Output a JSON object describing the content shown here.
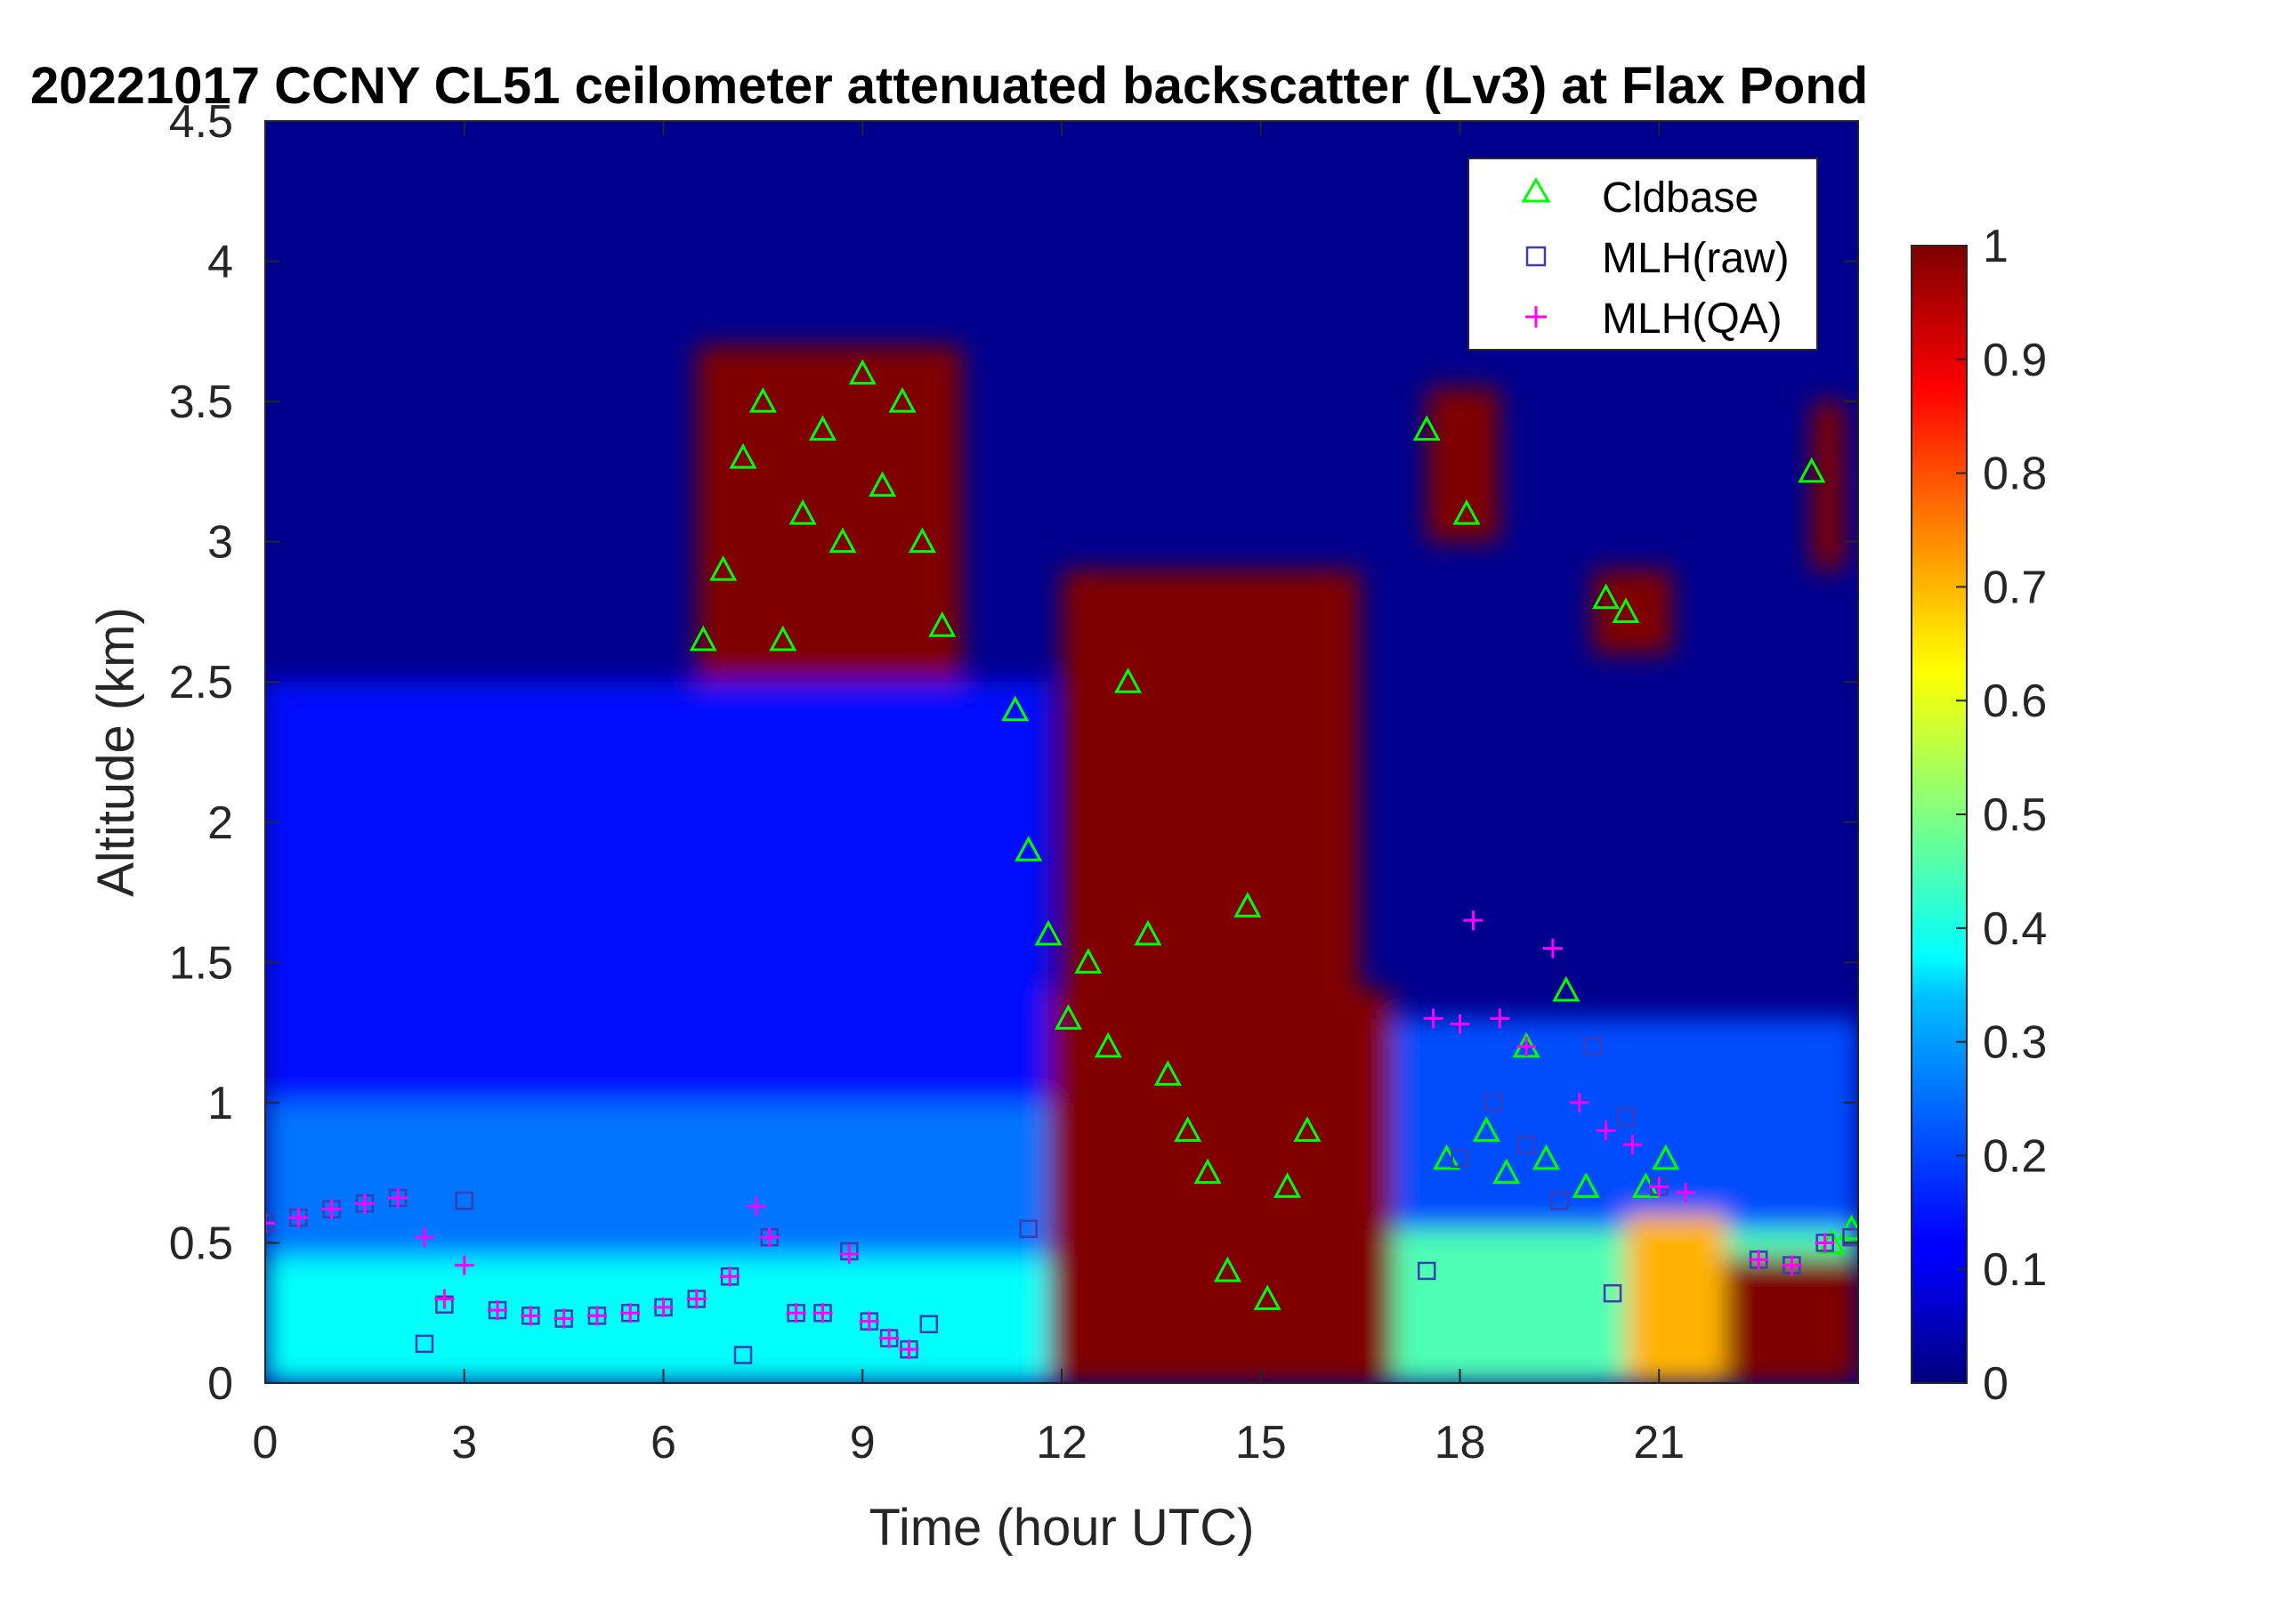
{
  "chart_data": {
    "type": "heatmap",
    "title": "20221017 CCNY CL51 ceilometer attenuated backscatter (Lv3) at Flax Pond",
    "xlabel": "Time (hour UTC)",
    "ylabel": "Altitude (km)",
    "xlim": [
      0,
      24
    ],
    "ylim": [
      0,
      4.5
    ],
    "xticks": [
      "0",
      "3",
      "6",
      "9",
      "12",
      "15",
      "18",
      "21"
    ],
    "yticks": [
      "0",
      "0.5",
      "1",
      "1.5",
      "2",
      "2.5",
      "3",
      "3.5",
      "4",
      "4.5"
    ],
    "colorbar": {
      "range": [
        0,
        1
      ],
      "ticks": [
        "0",
        "0.1",
        "0.2",
        "0.3",
        "0.4",
        "0.5",
        "0.6",
        "0.7",
        "0.8",
        "0.9",
        "1"
      ],
      "colormap": "jet"
    },
    "legend": {
      "placement": "top-right",
      "entries": [
        {
          "label": "Cldbase",
          "marker": "triangle",
          "color": "#00ff00"
        },
        {
          "label": "MLH(raw)",
          "marker": "square",
          "color": "#3c3cb4"
        },
        {
          "label": "MLH(QA)",
          "marker": "plus",
          "color": "#ff00ff"
        }
      ]
    },
    "backscatter_regions": [
      {
        "t0": 0,
        "t1": 11.8,
        "z0": 0,
        "z1": 0.45,
        "value": 0.38
      },
      {
        "t0": 0,
        "t1": 11.8,
        "z0": 0.45,
        "z1": 1.0,
        "value": 0.24
      },
      {
        "t0": 0,
        "t1": 11.8,
        "z0": 1.0,
        "z1": 2.5,
        "value": 0.14
      },
      {
        "t0": 6.5,
        "t1": 10.5,
        "z0": 2.5,
        "z1": 3.7,
        "value": 1.0
      },
      {
        "t0": 11.8,
        "t1": 17.0,
        "z0": 0,
        "z1": 1.4,
        "value": 1.0
      },
      {
        "t0": 12.0,
        "t1": 16.5,
        "z0": 1.4,
        "z1": 2.9,
        "value": 1.0
      },
      {
        "t0": 17.0,
        "t1": 24,
        "z0": 0,
        "z1": 0.55,
        "value": 0.45
      },
      {
        "t0": 17.0,
        "t1": 24,
        "z0": 0.55,
        "z1": 1.3,
        "value": 0.2
      },
      {
        "t0": 20.5,
        "t1": 22.0,
        "z0": 0,
        "z1": 0.6,
        "value": 0.7
      },
      {
        "t0": 22.0,
        "t1": 24,
        "z0": 0,
        "z1": 0.45,
        "value": 1.0
      },
      {
        "t0": 17.5,
        "t1": 18.6,
        "z0": 3.0,
        "z1": 3.55,
        "value": 1.0
      },
      {
        "t0": 20.0,
        "t1": 21.2,
        "z0": 2.6,
        "z1": 2.9,
        "value": 1.0
      },
      {
        "t0": 23.3,
        "t1": 23.8,
        "z0": 2.9,
        "z1": 3.5,
        "value": 1.0
      }
    ],
    "series": [
      {
        "name": "Cldbase",
        "x": [
          6.6,
          6.9,
          7.2,
          7.5,
          7.8,
          8.1,
          8.4,
          8.7,
          9.0,
          9.3,
          9.6,
          9.9,
          10.2,
          11.3,
          11.5,
          11.8,
          12.1,
          12.4,
          12.7,
          13.0,
          13.3,
          13.6,
          13.9,
          14.2,
          14.5,
          14.8,
          15.1,
          15.4,
          15.7,
          17.5,
          17.8,
          18.1,
          18.4,
          18.7,
          19.0,
          19.3,
          19.6,
          19.9,
          20.2,
          20.5,
          20.8,
          21.1,
          23.3,
          23.6,
          23.9
        ],
        "y": [
          2.65,
          2.9,
          3.3,
          3.5,
          2.65,
          3.1,
          3.4,
          3.0,
          3.6,
          3.2,
          3.5,
          3.0,
          2.7,
          2.4,
          1.9,
          1.6,
          1.3,
          1.5,
          1.2,
          2.5,
          1.6,
          1.1,
          0.9,
          0.75,
          0.4,
          1.7,
          0.3,
          0.7,
          0.9,
          3.4,
          0.8,
          3.1,
          0.9,
          0.75,
          1.2,
          0.8,
          1.4,
          0.7,
          2.8,
          2.75,
          0.7,
          0.8,
          3.25,
          0.5,
          0.55
        ]
      },
      {
        "name": "MLH(raw)",
        "x": [
          0.0,
          0.5,
          1.0,
          1.5,
          2.0,
          2.4,
          2.7,
          3.0,
          3.5,
          4.0,
          4.5,
          5.0,
          5.5,
          6.0,
          6.5,
          7.0,
          7.2,
          7.6,
          8.0,
          8.4,
          8.8,
          9.1,
          9.4,
          9.7,
          10.0,
          11.5,
          17.5,
          18.0,
          18.5,
          19.0,
          19.5,
          20.0,
          20.3,
          20.5,
          21.0,
          22.5,
          23.0,
          23.5,
          23.9
        ],
        "y": [
          0.57,
          0.59,
          0.62,
          0.64,
          0.66,
          0.14,
          0.28,
          0.65,
          0.26,
          0.24,
          0.23,
          0.24,
          0.25,
          0.27,
          0.3,
          0.38,
          0.1,
          0.52,
          0.25,
          0.25,
          0.47,
          0.22,
          0.16,
          0.12,
          0.21,
          0.55,
          0.4,
          0.8,
          1.0,
          0.85,
          0.65,
          1.2,
          0.32,
          0.95,
          0.7,
          0.44,
          0.42,
          0.5,
          0.52
        ]
      },
      {
        "name": "MLH(QA)",
        "x": [
          0.0,
          0.5,
          1.0,
          1.5,
          2.0,
          2.4,
          2.7,
          3.0,
          3.5,
          4.0,
          4.5,
          5.0,
          5.5,
          6.0,
          6.5,
          7.0,
          7.4,
          7.6,
          8.0,
          8.4,
          8.8,
          9.1,
          9.4,
          9.7,
          17.6,
          18.0,
          18.2,
          18.6,
          19.0,
          19.4,
          19.8,
          20.2,
          20.6,
          21.0,
          21.4,
          22.5,
          23.0,
          23.5
        ],
        "y": [
          0.57,
          0.59,
          0.62,
          0.64,
          0.66,
          0.52,
          0.3,
          0.42,
          0.26,
          0.24,
          0.23,
          0.24,
          0.25,
          0.27,
          0.3,
          0.38,
          0.63,
          0.52,
          0.25,
          0.25,
          0.46,
          0.22,
          0.16,
          0.12,
          1.3,
          1.28,
          1.65,
          1.3,
          1.2,
          1.55,
          1.0,
          0.9,
          0.85,
          0.7,
          0.68,
          0.44,
          0.42,
          0.5
        ]
      }
    ]
  }
}
